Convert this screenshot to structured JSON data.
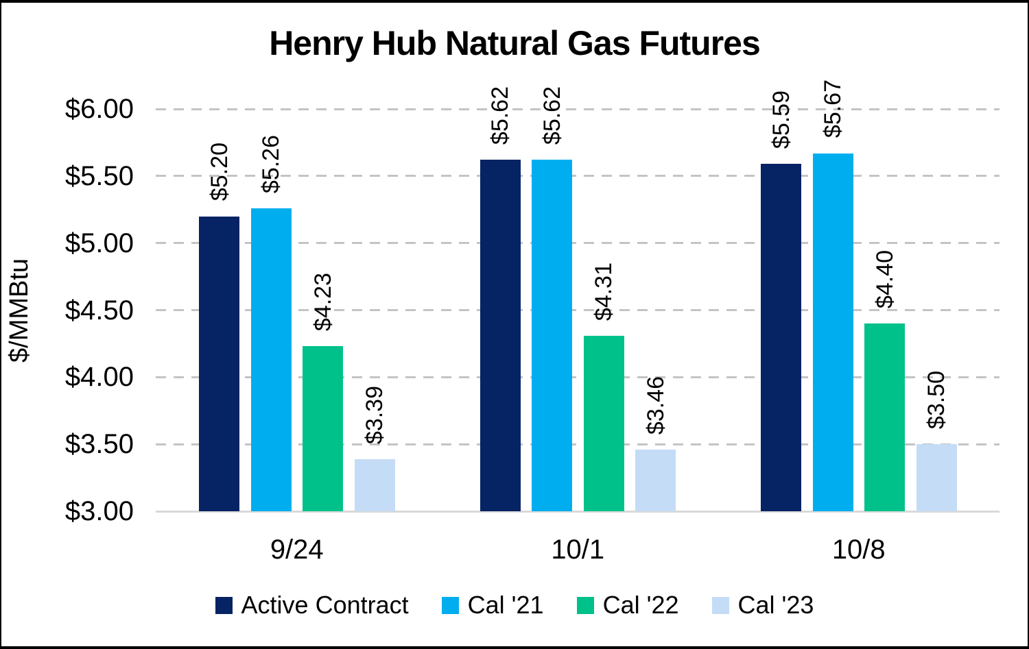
{
  "page": {
    "background": "#FFFFFF",
    "border_color": "#000000"
  },
  "chart_data": {
    "type": "bar",
    "title": "Henry Hub Natural Gas Futures",
    "ylabel": "$/MMBtu",
    "xlabel": "",
    "categories": [
      "9/24",
      "10/1",
      "10/8"
    ],
    "series": [
      {
        "name": "Active Contract",
        "color": "#062363",
        "values": [
          5.2,
          5.62,
          5.59
        ],
        "bar_labels": [
          "$5.20",
          "$5.62",
          "$5.59"
        ]
      },
      {
        "name": "Cal '21",
        "color": "#00AEEF",
        "values": [
          5.26,
          5.62,
          5.67
        ],
        "bar_labels": [
          "$5.26",
          "$5.62",
          "$5.67"
        ]
      },
      {
        "name": "Cal '22",
        "color": "#00C189",
        "values": [
          4.23,
          4.31,
          4.4
        ],
        "bar_labels": [
          "$4.23",
          "$4.31",
          "$4.40"
        ]
      },
      {
        "name": "Cal '23",
        "color": "#C5DCF6",
        "values": [
          3.39,
          3.46,
          3.5
        ],
        "bar_labels": [
          "$3.39",
          "$3.46",
          "$3.50"
        ]
      }
    ],
    "ylim": [
      3.0,
      6.0
    ],
    "ytick_step": 0.5,
    "yticks": [
      {
        "value": 3.0,
        "label": "$3.00"
      },
      {
        "value": 3.5,
        "label": "$3.50"
      },
      {
        "value": 4.0,
        "label": "$4.00"
      },
      {
        "value": 4.5,
        "label": "$4.50"
      },
      {
        "value": 5.0,
        "label": "$5.00"
      },
      {
        "value": 5.5,
        "label": "$5.50"
      },
      {
        "value": 6.0,
        "label": "$6.00"
      }
    ],
    "grid": "horizontal-dashed",
    "gridline_color": "#C4C4C4",
    "baseline_color": "#D9D9D9",
    "text_color": "#000000",
    "legend_position": "bottom"
  }
}
